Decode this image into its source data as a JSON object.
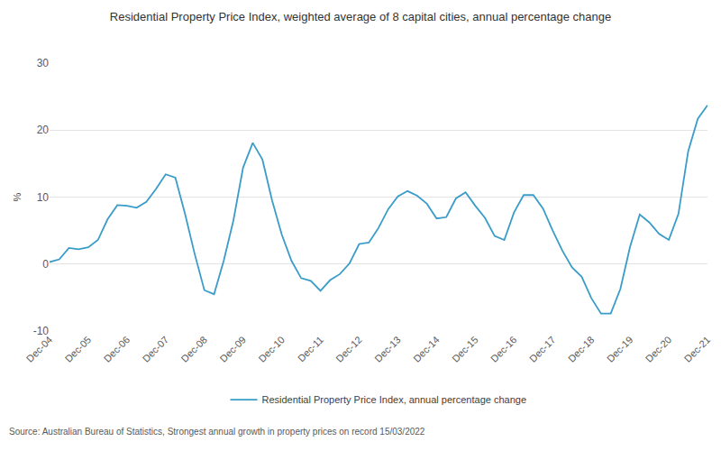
{
  "chart_data": {
    "type": "line",
    "title": "Residential Property Price Index, weighted average of 8 capital cities, annual percentage change",
    "y_label": "%",
    "source": "Source: Australian Bureau of Statistics, Strongest annual growth in property prices on record 15/03/2022",
    "categories": [
      "Dec-04",
      null,
      null,
      null,
      "Dec-05",
      null,
      null,
      null,
      "Dec-06",
      null,
      null,
      null,
      "Dec-07",
      null,
      null,
      null,
      "Dec-08",
      null,
      null,
      null,
      "Dec-09",
      null,
      null,
      null,
      "Dec-10",
      null,
      null,
      null,
      "Dec-11",
      null,
      null,
      null,
      "Dec-12",
      null,
      null,
      null,
      "Dec-13",
      null,
      null,
      null,
      "Dec-14",
      null,
      null,
      null,
      "Dec-15",
      null,
      null,
      null,
      "Dec-16",
      null,
      null,
      null,
      "Dec-17",
      null,
      null,
      null,
      "Dec-18",
      null,
      null,
      null,
      "Dec-19",
      null,
      null,
      null,
      "Dec-20",
      null,
      null,
      null,
      "Dec-21"
    ],
    "series": [
      {
        "name": "Residential Property Price Index, annual percentage change",
        "color": "#3a9cc8",
        "values": [
          0.3,
          0.7,
          2.4,
          2.2,
          2.5,
          3.6,
          6.7,
          8.8,
          8.7,
          8.4,
          9.3,
          11.2,
          13.4,
          12.9,
          7.5,
          1.5,
          -3.9,
          -4.5,
          0.5,
          6.5,
          14.4,
          18.1,
          15.6,
          9.5,
          4.4,
          0.5,
          -2.1,
          -2.5,
          -4.0,
          -2.4,
          -1.5,
          0.1,
          3.0,
          3.2,
          5.4,
          8.2,
          10.1,
          10.9,
          10.2,
          9.0,
          6.8,
          7.0,
          9.8,
          10.7,
          8.7,
          6.9,
          4.2,
          3.6,
          7.7,
          10.3,
          10.3,
          8.3,
          5.0,
          2.0,
          -0.5,
          -1.9,
          -5.1,
          -7.4,
          -7.4,
          -3.7,
          2.6,
          7.4,
          6.2,
          4.5,
          3.6,
          7.5,
          16.8,
          21.7,
          23.7
        ]
      }
    ],
    "ylim": [
      -10,
      30
    ],
    "yticks": [
      -10,
      0,
      10,
      20,
      30
    ],
    "grid": true,
    "legend": "bottom"
  }
}
